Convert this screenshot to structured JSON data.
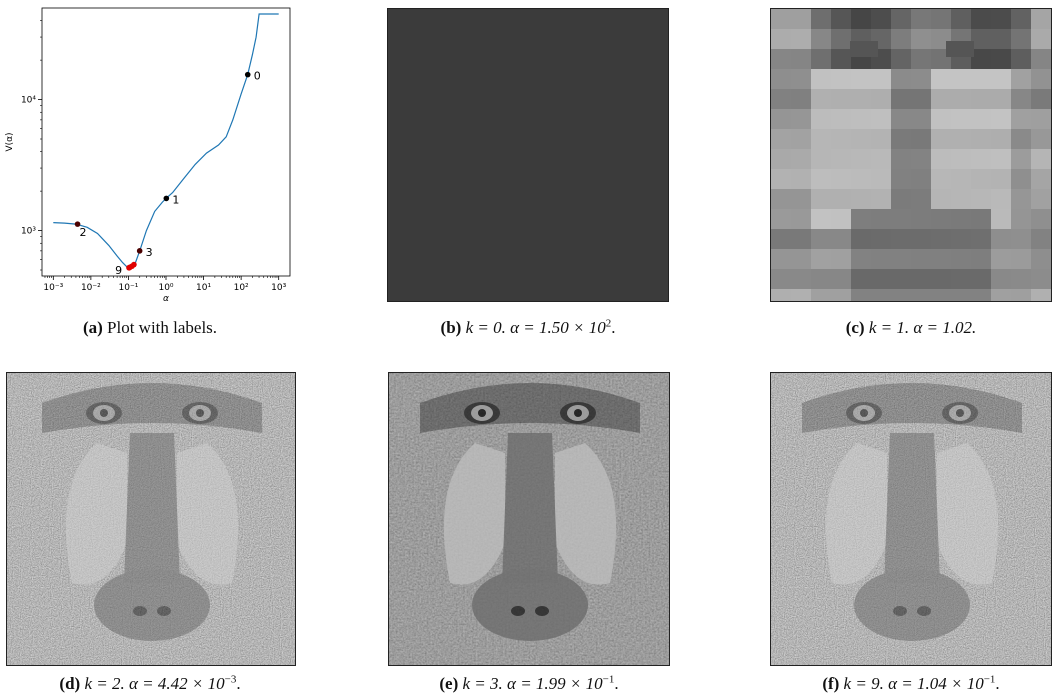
{
  "chart_data": {
    "type": "line",
    "xlabel": "α",
    "ylabel": "V(α)",
    "xscale": "log",
    "yscale": "log",
    "xlim": [
      0.0005,
      2000
    ],
    "ylim": [
      450,
      50000
    ],
    "x_ticks": [
      0.001,
      0.01,
      0.1,
      1,
      10,
      100,
      1000
    ],
    "x_tick_labels": [
      "10⁻³",
      "10⁻²",
      "10⁻¹",
      "10⁰",
      "10¹",
      "10²",
      "10³"
    ],
    "y_ticks": [
      1000,
      10000
    ],
    "y_tick_labels": [
      "10³",
      "10⁴"
    ],
    "series": [
      {
        "color": "#1f77b4",
        "x": [
          0.001,
          0.002,
          0.004,
          0.008,
          0.015,
          0.03,
          0.05,
          0.07,
          0.09,
          0.1,
          0.12,
          0.15,
          0.2,
          0.3,
          0.5,
          0.8,
          1.0,
          1.5,
          3,
          6,
          12,
          25,
          40,
          60,
          100,
          150,
          200,
          250,
          300,
          500,
          1000
        ],
        "y": [
          1150,
          1140,
          1120,
          1060,
          950,
          770,
          640,
          570,
          530,
          520,
          530,
          560,
          700,
          1000,
          1400,
          1650,
          1760,
          1950,
          2500,
          3200,
          3900,
          4500,
          5200,
          7000,
          11000,
          15500,
          22000,
          30000,
          45000,
          45000,
          45000
        ]
      }
    ],
    "points": [
      {
        "label": "0",
        "x": 150,
        "y": 15500,
        "color": "#000000"
      },
      {
        "label": "1",
        "x": 1.02,
        "y": 1760,
        "color": "#000000"
      },
      {
        "label": "2",
        "x": 0.00442,
        "y": 1120,
        "color": "#4a0000"
      },
      {
        "label": "3",
        "x": 0.199,
        "y": 700,
        "color": "#4a0000"
      },
      {
        "x": 0.104,
        "y": 520,
        "color": "#e00000"
      },
      {
        "x": 0.11,
        "y": 525,
        "color": "#e00000"
      },
      {
        "x": 0.125,
        "y": 535,
        "color": "#e00000"
      },
      {
        "x": 0.14,
        "y": 550,
        "color": "#e00000"
      },
      {
        "label": "9",
        "x": 0.104,
        "y": 520,
        "color": "#e00000"
      }
    ]
  },
  "captions": {
    "a": {
      "tag": "(a)",
      "text": "Plot with labels."
    },
    "b": {
      "tag": "(b)",
      "k": "k = 0.",
      "alpha_pre": "α = 1.50 × 10",
      "exp": "2",
      "end": "."
    },
    "c": {
      "tag": "(c)",
      "k": "k = 1.",
      "alpha_pre": "α = 1.02.",
      "exp": "",
      "end": ""
    },
    "d": {
      "tag": "(d)",
      "k": "k = 2.",
      "alpha_pre": "α = 4.42 × 10",
      "exp": "−3",
      "end": "."
    },
    "e": {
      "tag": "(e)",
      "k": "k = 3.",
      "alpha_pre": "α = 1.99 × 10",
      "exp": "−1",
      "end": "."
    },
    "f": {
      "tag": "(f)",
      "k": "k = 9.",
      "alpha_pre": "α = 1.04 × 10",
      "exp": "−1",
      "end": "."
    }
  }
}
